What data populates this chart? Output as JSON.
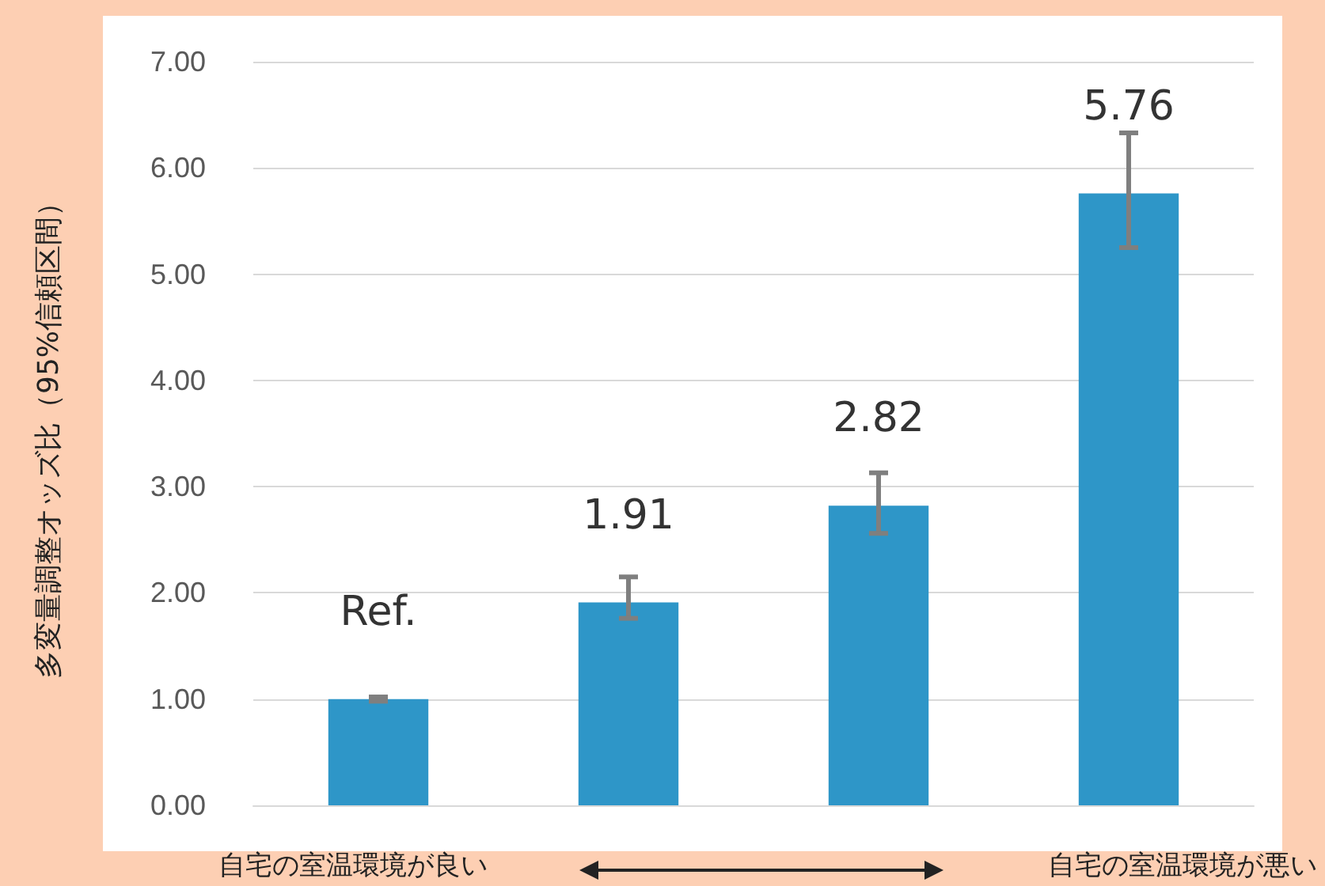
{
  "chart_data": {
    "type": "bar",
    "ylabel": "多変量調整オッズ比（95%信頼区間）",
    "categories": [
      null,
      null,
      null,
      null
    ],
    "values": [
      1.0,
      1.91,
      2.82,
      5.76
    ],
    "errors": [
      [
        0.98,
        1.02
      ],
      [
        1.76,
        2.15
      ],
      [
        2.56,
        3.13
      ],
      [
        5.25,
        6.33
      ]
    ],
    "value_labels": [
      "Ref.",
      "1.91",
      "2.82",
      "5.76"
    ],
    "color": "#2e96c8",
    "ylim": [
      0,
      7
    ],
    "yticks": [
      {
        "value": 0,
        "label": "0.00"
      },
      {
        "value": 1,
        "label": "1.00"
      },
      {
        "value": 2,
        "label": "2.00"
      },
      {
        "value": 3,
        "label": "3.00"
      },
      {
        "value": 4,
        "label": "4.00"
      },
      {
        "value": 5,
        "label": "5.00"
      },
      {
        "value": 6,
        "label": "6.00"
      },
      {
        "value": 7,
        "label": "7.00"
      }
    ],
    "grid": "y",
    "annotations": [
      "自宅の室温環境が良い",
      "自宅の室温環境が悪い"
    ]
  }
}
